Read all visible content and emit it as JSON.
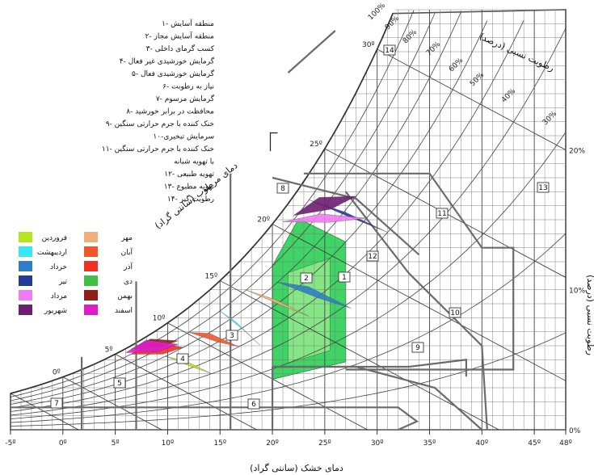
{
  "chart_data": {
    "type": "psychrometric-bioclimatic",
    "xlabel": "دمای خشک (سانتی گراد)",
    "ylabel_left": "دمای مرطوب (سانتی گراد)",
    "ylabel_right": "رطوبت نسبی (درصد)",
    "rh_title": "رطوبت نسبی (درصد)",
    "x_ticks": [
      "-5º",
      "0º",
      "5º",
      "10º",
      "15º",
      "20º",
      "25º",
      "30º",
      "35º",
      "40º",
      "45º",
      "48º"
    ],
    "x_values": [
      -5,
      0,
      5,
      10,
      15,
      20,
      25,
      30,
      35,
      40,
      45,
      48
    ],
    "xlim": [
      -5,
      48
    ],
    "wb_ticks": [
      {
        "label": "0º",
        "t": 0
      },
      {
        "label": "5º",
        "t": 5
      },
      {
        "label": "10º",
        "t": 10
      },
      {
        "label": "15º",
        "t": 15
      },
      {
        "label": "20º",
        "t": 20
      },
      {
        "label": "25º",
        "t": 25
      },
      {
        "label": "30º",
        "t": 30
      }
    ],
    "rh_curves": [
      10,
      20,
      30,
      40,
      50,
      60,
      70,
      80,
      90,
      100
    ],
    "rh_labels": [
      "100%",
      "90%",
      "80%",
      "70%",
      "60%",
      "50%",
      "40%",
      "30%"
    ],
    "right_ticks": [
      {
        "label": "20%",
        "w": 0.02
      },
      {
        "label": "10%",
        "w": 0.01
      },
      {
        "label": "0%",
        "w": 0.0
      }
    ],
    "zones": [
      {
        "id": "1",
        "label": "۱- منطقه آسایش"
      },
      {
        "id": "2",
        "label": "۲- منطقه آسایش مجاز"
      },
      {
        "id": "3",
        "label": "۳- کسب گرمای داخلی"
      },
      {
        "id": "4",
        "label": "۴- گرمایش خورشیدی غیر فعال"
      },
      {
        "id": "5",
        "label": "۵- گرمایش خورشیدی فعال"
      },
      {
        "id": "6",
        "label": "۶- نیاز به رطوبت"
      },
      {
        "id": "7",
        "label": "۷- گرمایش مرسوم"
      },
      {
        "id": "8",
        "label": "۸- محافظت در برابر خورشید"
      },
      {
        "id": "9",
        "label": "۹- خنک کننده با جرم حرارتی سنگین"
      },
      {
        "id": "10",
        "label": "۱۰-سرمایش تبخیری"
      },
      {
        "id": "11",
        "label": "۱۱- خنک کننده با جرم حرارتی سنگین"
      },
      {
        "id": "11b",
        "label": "با تهویه شبانه"
      },
      {
        "id": "12",
        "label": "۱۲- تهویه طبیعی"
      },
      {
        "id": "13",
        "label": "۱۳- تهویه مطبوع"
      },
      {
        "id": "14",
        "label": "۱۴- رطوبت گیر"
      }
    ],
    "zone_boxes": [
      "1",
      "2",
      "3",
      "4",
      "5",
      "6",
      "7",
      "8",
      "9",
      "10",
      "11",
      "12",
      "13",
      "14"
    ],
    "months": [
      {
        "name": "فروردین",
        "color": "#b4e61e",
        "t1": 9.8,
        "t2": 14.2,
        "rh1": 70,
        "rh2": 40
      },
      {
        "name": "اردیبهشت",
        "color": "#38e8f0",
        "t1": 15,
        "t2": 18.8,
        "rh1": 80,
        "rh2": 45
      },
      {
        "name": "خرداد",
        "color": "#2f7fc8",
        "t1": 20.5,
        "t2": 27.5,
        "rh1": 70,
        "rh2": 38
      },
      {
        "name": "تیر",
        "color": "#233a96",
        "t1": 23.5,
        "t2": 31,
        "rh1": 90,
        "rh2": 50
      },
      {
        "name": "مرداد",
        "color": "#ef7cf0",
        "t1": 21,
        "t2": 29,
        "rh1": 95,
        "rh2": 60
      },
      {
        "name": "شهریور",
        "color": "#6b1f70",
        "t1": 22,
        "t2": 28,
        "rh1": 92,
        "rh2": 70
      },
      {
        "name": "مهر",
        "color": "#f0b07a",
        "t1": 17.5,
        "t2": 23.5,
        "rh1": 80,
        "rh2": 45
      },
      {
        "name": "آبان",
        "color": "#f0562a",
        "t1": 12,
        "t2": 16.8,
        "rh1": 80,
        "rh2": 50
      },
      {
        "name": "آذر",
        "color": "#f03020",
        "t1": 6.5,
        "t2": 11.5,
        "rh1": 90,
        "rh2": 70
      },
      {
        "name": "دی",
        "color": "#3fbf45",
        "t1": null,
        "t2": null,
        "rh1": null,
        "rh2": null
      },
      {
        "name": "بهمن",
        "color": "#8e1f14",
        "t1": 6.5,
        "t2": 11,
        "rh1": 96,
        "rh2": 78
      },
      {
        "name": "اسفند",
        "color": "#dd1ec8",
        "t1": 6,
        "t2": 11,
        "rh1": 95,
        "rh2": 75
      }
    ]
  }
}
